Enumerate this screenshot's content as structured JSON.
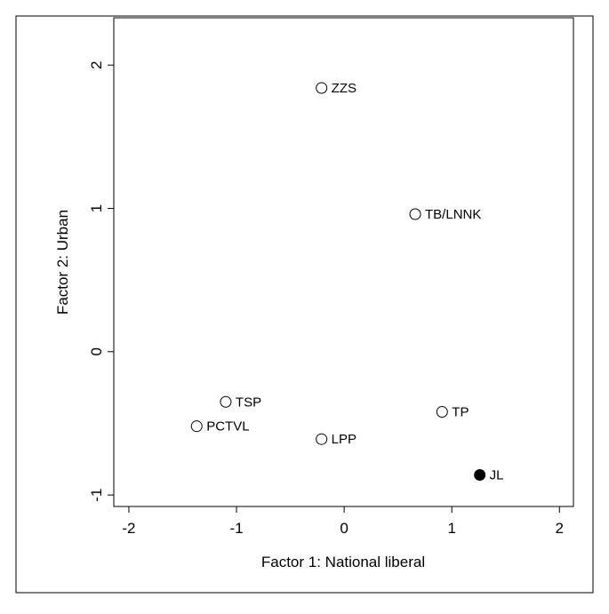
{
  "chart_data": {
    "type": "scatter",
    "xlabel": "Factor 1: National liberal",
    "ylabel": "Factor 2: Urban",
    "labels": [
      "ZZS",
      "TB/LNNK",
      "TSP",
      "PCTVL",
      "LPP",
      "TP",
      "JL"
    ],
    "x": [
      -0.21,
      0.66,
      -1.1,
      -1.37,
      -0.21,
      0.91,
      1.26
    ],
    "values": [
      1.84,
      0.96,
      -0.35,
      -0.52,
      -0.61,
      -0.42,
      -0.86
    ],
    "fills": [
      "#ffffff",
      "#ffffff",
      "#ffffff",
      "#ffffff",
      "#ffffff",
      "#ffffff",
      "#000000"
    ],
    "xlim": [
      -2.14,
      2.13
    ],
    "ylim": [
      -1.08,
      2.33
    ],
    "xticks": [
      -2,
      -1,
      0,
      1,
      2
    ],
    "yticks": [
      -1,
      0,
      1,
      2
    ]
  }
}
